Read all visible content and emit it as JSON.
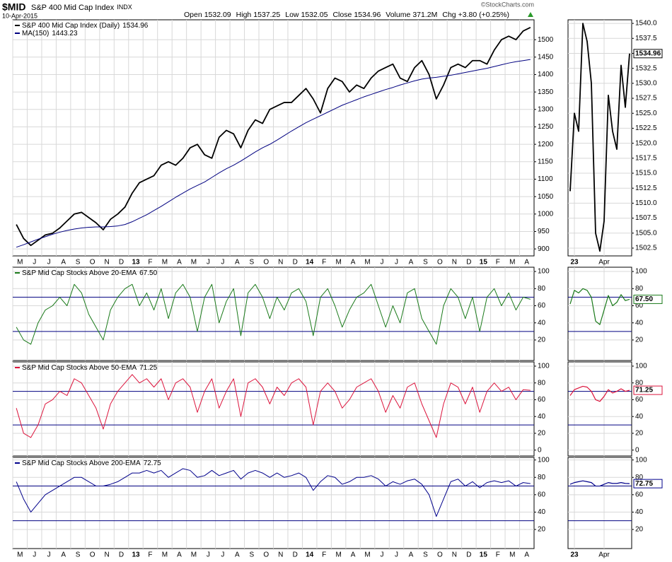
{
  "header": {
    "symbol": "$MID",
    "name": "S&P 400 Mid Cap Index",
    "exchange": "INDX",
    "date": "10-Apr-2015",
    "credit": "©StockCharts.com",
    "quote": [
      {
        "label": "Open",
        "value": 1532.09
      },
      {
        "label": "High",
        "value": 1537.25
      },
      {
        "label": "Low",
        "value": 1532.05
      },
      {
        "label": "Close",
        "value": 1534.96
      },
      {
        "label": "Volume",
        "value": "371.2M"
      },
      {
        "label": "Chg",
        "value": "+3.80 (+0.25%)"
      }
    ]
  },
  "chart_data": [
    {
      "type": "line",
      "grid": true,
      "categories": [
        "M",
        null,
        "J",
        null,
        "J",
        null,
        "A",
        null,
        "S",
        null,
        "O",
        null,
        "N",
        null,
        "D",
        null,
        "13",
        null,
        "F",
        null,
        "M",
        null,
        "A",
        null,
        "M",
        null,
        "J",
        null,
        "J",
        null,
        "A",
        null,
        "S",
        null,
        "O",
        null,
        "N",
        null,
        "D",
        null,
        "14",
        null,
        "F",
        null,
        "M",
        null,
        "A",
        null,
        "M",
        null,
        "J",
        null,
        "J",
        null,
        "A",
        null,
        "S",
        null,
        "O",
        null,
        "N",
        null,
        "D",
        null,
        "15",
        null,
        "F",
        null,
        "M",
        null,
        "A",
        null
      ],
      "ylim": [
        880,
        1557
      ],
      "yticks": [
        900,
        950,
        1000,
        1050,
        1100,
        1150,
        1200,
        1250,
        1300,
        1350,
        1400,
        1450,
        1500
      ],
      "series": [
        {
          "name": "S&P 400 Mid Cap Index (Daily)",
          "color": "#000000",
          "values": [
            970,
            930,
            910,
            925,
            940,
            945,
            960,
            980,
            1000,
            1005,
            990,
            975,
            955,
            985,
            1000,
            1020,
            1060,
            1090,
            1100,
            1110,
            1140,
            1150,
            1140,
            1160,
            1190,
            1200,
            1170,
            1160,
            1220,
            1240,
            1230,
            1190,
            1240,
            1270,
            1260,
            1300,
            1310,
            1320,
            1320,
            1340,
            1360,
            1330,
            1290,
            1360,
            1390,
            1380,
            1350,
            1370,
            1360,
            1390,
            1410,
            1420,
            1430,
            1390,
            1380,
            1420,
            1440,
            1400,
            1330,
            1370,
            1420,
            1430,
            1420,
            1440,
            1440,
            1430,
            1470,
            1500,
            1510,
            1500,
            1525,
            1534.96
          ]
        },
        {
          "name": "MA(150)",
          "color": "#000080",
          "values": [
            905,
            912,
            920,
            928,
            935,
            942,
            948,
            953,
            957,
            960,
            962,
            963,
            963,
            964,
            966,
            970,
            978,
            988,
            998,
            1010,
            1022,
            1035,
            1048,
            1060,
            1072,
            1082,
            1092,
            1105,
            1118,
            1130,
            1140,
            1152,
            1165,
            1178,
            1190,
            1200,
            1212,
            1225,
            1238,
            1250,
            1262,
            1272,
            1282,
            1292,
            1302,
            1312,
            1320,
            1328,
            1336,
            1343,
            1350,
            1357,
            1363,
            1370,
            1376,
            1382,
            1387,
            1390,
            1392,
            1395,
            1398,
            1402,
            1406,
            1410,
            1414,
            1418,
            1423,
            1428,
            1433,
            1437,
            1440,
            1443.23
          ]
        }
      ]
    },
    {
      "type": "line",
      "grid": true,
      "ylim": [
        -4,
        105
      ],
      "yticks": [
        20,
        40,
        60,
        80,
        100
      ],
      "reference_lines": [
        30,
        70
      ],
      "series": [
        {
          "name": "S&P Mid Cap Stocks Above 20-EMA",
          "last_label": "67.50",
          "color": "#1a7a1a",
          "values": [
            35,
            20,
            15,
            40,
            55,
            60,
            70,
            60,
            85,
            75,
            50,
            35,
            20,
            55,
            70,
            80,
            85,
            60,
            75,
            55,
            80,
            45,
            75,
            85,
            70,
            30,
            70,
            85,
            40,
            65,
            80,
            25,
            75,
            85,
            70,
            45,
            70,
            55,
            75,
            80,
            65,
            25,
            70,
            80,
            60,
            35,
            55,
            70,
            75,
            85,
            60,
            35,
            60,
            40,
            75,
            80,
            45,
            30,
            15,
            60,
            80,
            70,
            45,
            70,
            30,
            70,
            80,
            60,
            75,
            55,
            70,
            67.5
          ]
        }
      ]
    },
    {
      "type": "line",
      "grid": true,
      "ylim": [
        -7,
        105
      ],
      "yticks": [
        0,
        20,
        40,
        60,
        80,
        100
      ],
      "reference_lines": [
        30,
        70
      ],
      "series": [
        {
          "name": "S&P Mid Cap Stocks Above 50-EMA",
          "last_label": "71.25",
          "color": "#dc143c",
          "values": [
            50,
            20,
            15,
            30,
            55,
            60,
            70,
            65,
            85,
            80,
            65,
            50,
            25,
            55,
            70,
            80,
            90,
            80,
            85,
            75,
            85,
            60,
            80,
            85,
            75,
            45,
            70,
            85,
            50,
            70,
            85,
            40,
            80,
            85,
            75,
            55,
            75,
            65,
            80,
            85,
            75,
            30,
            70,
            80,
            70,
            50,
            60,
            75,
            80,
            85,
            70,
            45,
            65,
            50,
            75,
            80,
            55,
            35,
            15,
            55,
            80,
            75,
            55,
            75,
            45,
            70,
            80,
            70,
            75,
            60,
            72,
            71.25
          ]
        }
      ]
    },
    {
      "type": "line",
      "grid": true,
      "categories": [
        "M",
        null,
        "J",
        null,
        "J",
        null,
        "A",
        null,
        "S",
        null,
        "O",
        null,
        "N",
        null,
        "D",
        null,
        "13",
        null,
        "F",
        null,
        "M",
        null,
        "A",
        null,
        "M",
        null,
        "J",
        null,
        "J",
        null,
        "A",
        null,
        "S",
        null,
        "O",
        null,
        "N",
        null,
        "D",
        null,
        "14",
        null,
        "F",
        null,
        "M",
        null,
        "A",
        null,
        "M",
        null,
        "J",
        null,
        "J",
        null,
        "A",
        null,
        "S",
        null,
        "O",
        null,
        "N",
        null,
        "D",
        null,
        "15",
        null,
        "F",
        null,
        "M",
        null,
        "A",
        null
      ],
      "ylim": [
        -2,
        103
      ],
      "yticks": [
        20,
        40,
        60,
        80,
        100
      ],
      "reference_lines": [
        30,
        70
      ],
      "series": [
        {
          "name": "S&P Mid Cap Stocks Above 200-EMA",
          "last_label": "72.75",
          "color": "#00008b",
          "values": [
            75,
            55,
            40,
            50,
            60,
            65,
            70,
            75,
            80,
            80,
            75,
            70,
            70,
            72,
            75,
            80,
            85,
            85,
            88,
            85,
            88,
            80,
            85,
            90,
            88,
            80,
            82,
            88,
            82,
            85,
            88,
            78,
            85,
            88,
            85,
            80,
            85,
            80,
            82,
            85,
            80,
            65,
            75,
            82,
            80,
            72,
            75,
            80,
            80,
            82,
            78,
            70,
            75,
            72,
            76,
            78,
            72,
            60,
            35,
            55,
            75,
            78,
            70,
            75,
            68,
            74,
            76,
            74,
            76,
            70,
            74,
            72.75
          ]
        }
      ]
    },
    {
      "type": "line",
      "grid": true,
      "categories": [
        null,
        "23",
        null,
        null,
        null,
        null,
        null,
        null,
        "Apr",
        null,
        null,
        null,
        null,
        null,
        null
      ],
      "ylim": [
        1501.2,
        1540.6
      ],
      "yticks": [
        1502.5,
        {
          "value": 1505,
          "label": "1505.0"
        },
        1507.5,
        {
          "value": 1510,
          "label": "1510.0"
        },
        1512.5,
        {
          "value": 1515,
          "label": "1515.0"
        },
        1517.5,
        {
          "value": 1520,
          "label": "1520.0"
        },
        1522.5,
        {
          "value": 1525,
          "label": "1525.0"
        },
        1527.5,
        {
          "value": 1530,
          "label": "1530.0"
        },
        1532.5,
        {
          "value": 1535,
          "label": "1535.0"
        },
        1537.5,
        {
          "value": 1540,
          "label": "1540.0"
        }
      ],
      "series": [
        {
          "color": "#000000",
          "values": [
            1512,
            1525,
            1522,
            1540,
            1537,
            1530,
            1505,
            1502,
            1507,
            1528,
            1522,
            1519,
            1533,
            1526,
            1534.96
          ]
        }
      ]
    },
    {
      "type": "line",
      "grid": true,
      "ylim": [
        -4,
        105
      ],
      "yticks": [
        20,
        40,
        60,
        80,
        100
      ],
      "reference_lines": [
        30,
        70
      ],
      "series": [
        {
          "color": "#1a7a1a",
          "last_label": "67.50",
          "values": [
            62,
            78,
            75,
            80,
            78,
            70,
            42,
            38,
            55,
            72,
            60,
            64,
            73,
            66,
            67.5
          ]
        }
      ]
    },
    {
      "type": "line",
      "grid": true,
      "ylim": [
        -7,
        105
      ],
      "yticks": [
        0,
        20,
        40,
        60,
        80,
        100
      ],
      "reference_lines": [
        30,
        70
      ],
      "series": [
        {
          "color": "#dc143c",
          "last_label": "71.25",
          "values": [
            65,
            72,
            74,
            76,
            75,
            70,
            60,
            58,
            64,
            72,
            68,
            70,
            73,
            70,
            71.25
          ]
        }
      ]
    },
    {
      "type": "line",
      "grid": true,
      "categories": [
        null,
        "23",
        null,
        null,
        null,
        null,
        null,
        null,
        "Apr",
        null,
        null,
        null,
        null,
        null,
        null
      ],
      "ylim": [
        -2,
        103
      ],
      "yticks": [
        20,
        40,
        60,
        80,
        100
      ],
      "reference_lines": [
        30,
        70
      ],
      "series": [
        {
          "color": "#00008b",
          "last_label": "72.75",
          "values": [
            72,
            74,
            75,
            76,
            75,
            74,
            70,
            70,
            72,
            74,
            73,
            73,
            74,
            73,
            72.75
          ]
        }
      ]
    }
  ]
}
